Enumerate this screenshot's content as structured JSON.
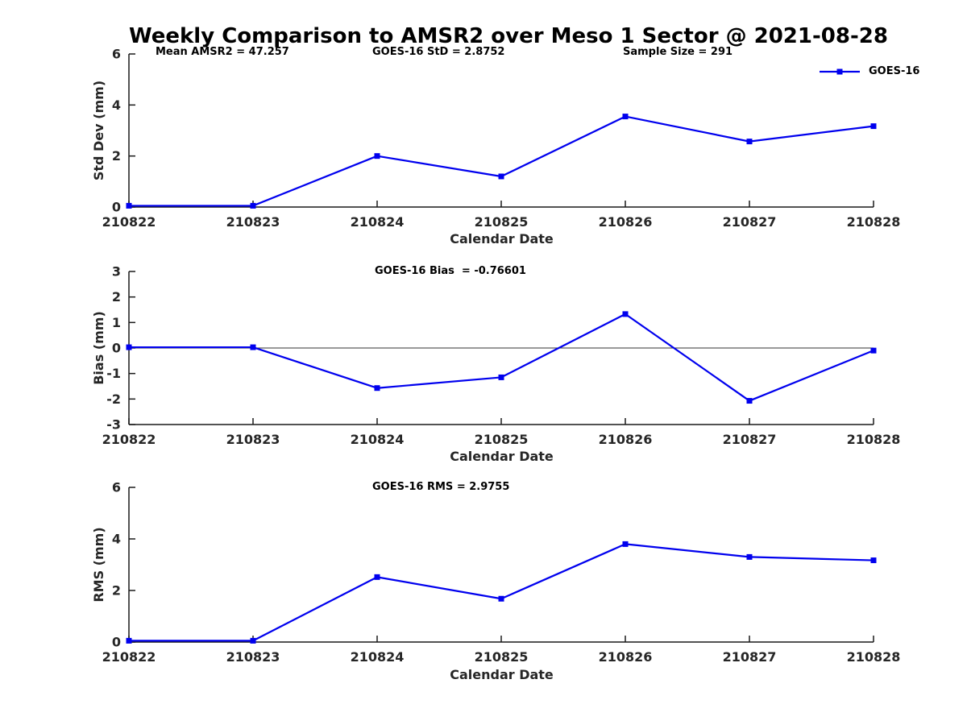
{
  "title": "Weekly Comparison to AMSR2 over Meso 1 Sector @ 2021-08-28",
  "accent_color": "#0000EE",
  "axis_color": "#1a1a1a",
  "tick_label_color": "#262626",
  "legend": {
    "label": "GOES-16"
  },
  "chart_data": [
    {
      "type": "line",
      "ylabel": "Std Dev (mm)",
      "xlabel": "Calendar Date",
      "categories": [
        "210822",
        "210823",
        "210824",
        "210825",
        "210826",
        "210827",
        "210828"
      ],
      "series": [
        {
          "name": "GOES-16",
          "color": "#0000EE",
          "marker": "square",
          "values": [
            0.05,
            0.05,
            2.0,
            1.2,
            3.55,
            2.57,
            3.17
          ]
        }
      ],
      "ylim": [
        0,
        6
      ],
      "yticks": [
        0,
        2,
        4,
        6
      ],
      "zero_line": false,
      "grid": false,
      "legend_position": "top-right-outside",
      "annotations": [
        "Mean AMSR2 = 47.257",
        "GOES-16 StD = 2.8752",
        "Sample Size = 291"
      ]
    },
    {
      "type": "line",
      "ylabel": "Bias (mm)",
      "xlabel": "Calendar Date",
      "categories": [
        "210822",
        "210823",
        "210824",
        "210825",
        "210826",
        "210827",
        "210828"
      ],
      "series": [
        {
          "name": "GOES-16",
          "color": "#0000EE",
          "marker": "square",
          "values": [
            0.03,
            0.03,
            -1.57,
            -1.15,
            1.33,
            -2.07,
            -0.1
          ]
        }
      ],
      "ylim": [
        -3,
        3
      ],
      "yticks": [
        -3,
        -2,
        -1,
        0,
        1,
        2,
        3
      ],
      "zero_line": true,
      "grid": false,
      "annotations": [
        "GOES-16 Bias  = -0.76601"
      ]
    },
    {
      "type": "line",
      "ylabel": "RMS (mm)",
      "xlabel": "Calendar Date",
      "categories": [
        "210822",
        "210823",
        "210824",
        "210825",
        "210826",
        "210827",
        "210828"
      ],
      "series": [
        {
          "name": "GOES-16",
          "color": "#0000EE",
          "marker": "square",
          "values": [
            0.05,
            0.05,
            2.52,
            1.68,
            3.8,
            3.3,
            3.17
          ]
        }
      ],
      "ylim": [
        0,
        6
      ],
      "yticks": [
        0,
        2,
        4,
        6
      ],
      "zero_line": false,
      "grid": false,
      "annotations": [
        "GOES-16 RMS = 2.9755"
      ]
    }
  ]
}
